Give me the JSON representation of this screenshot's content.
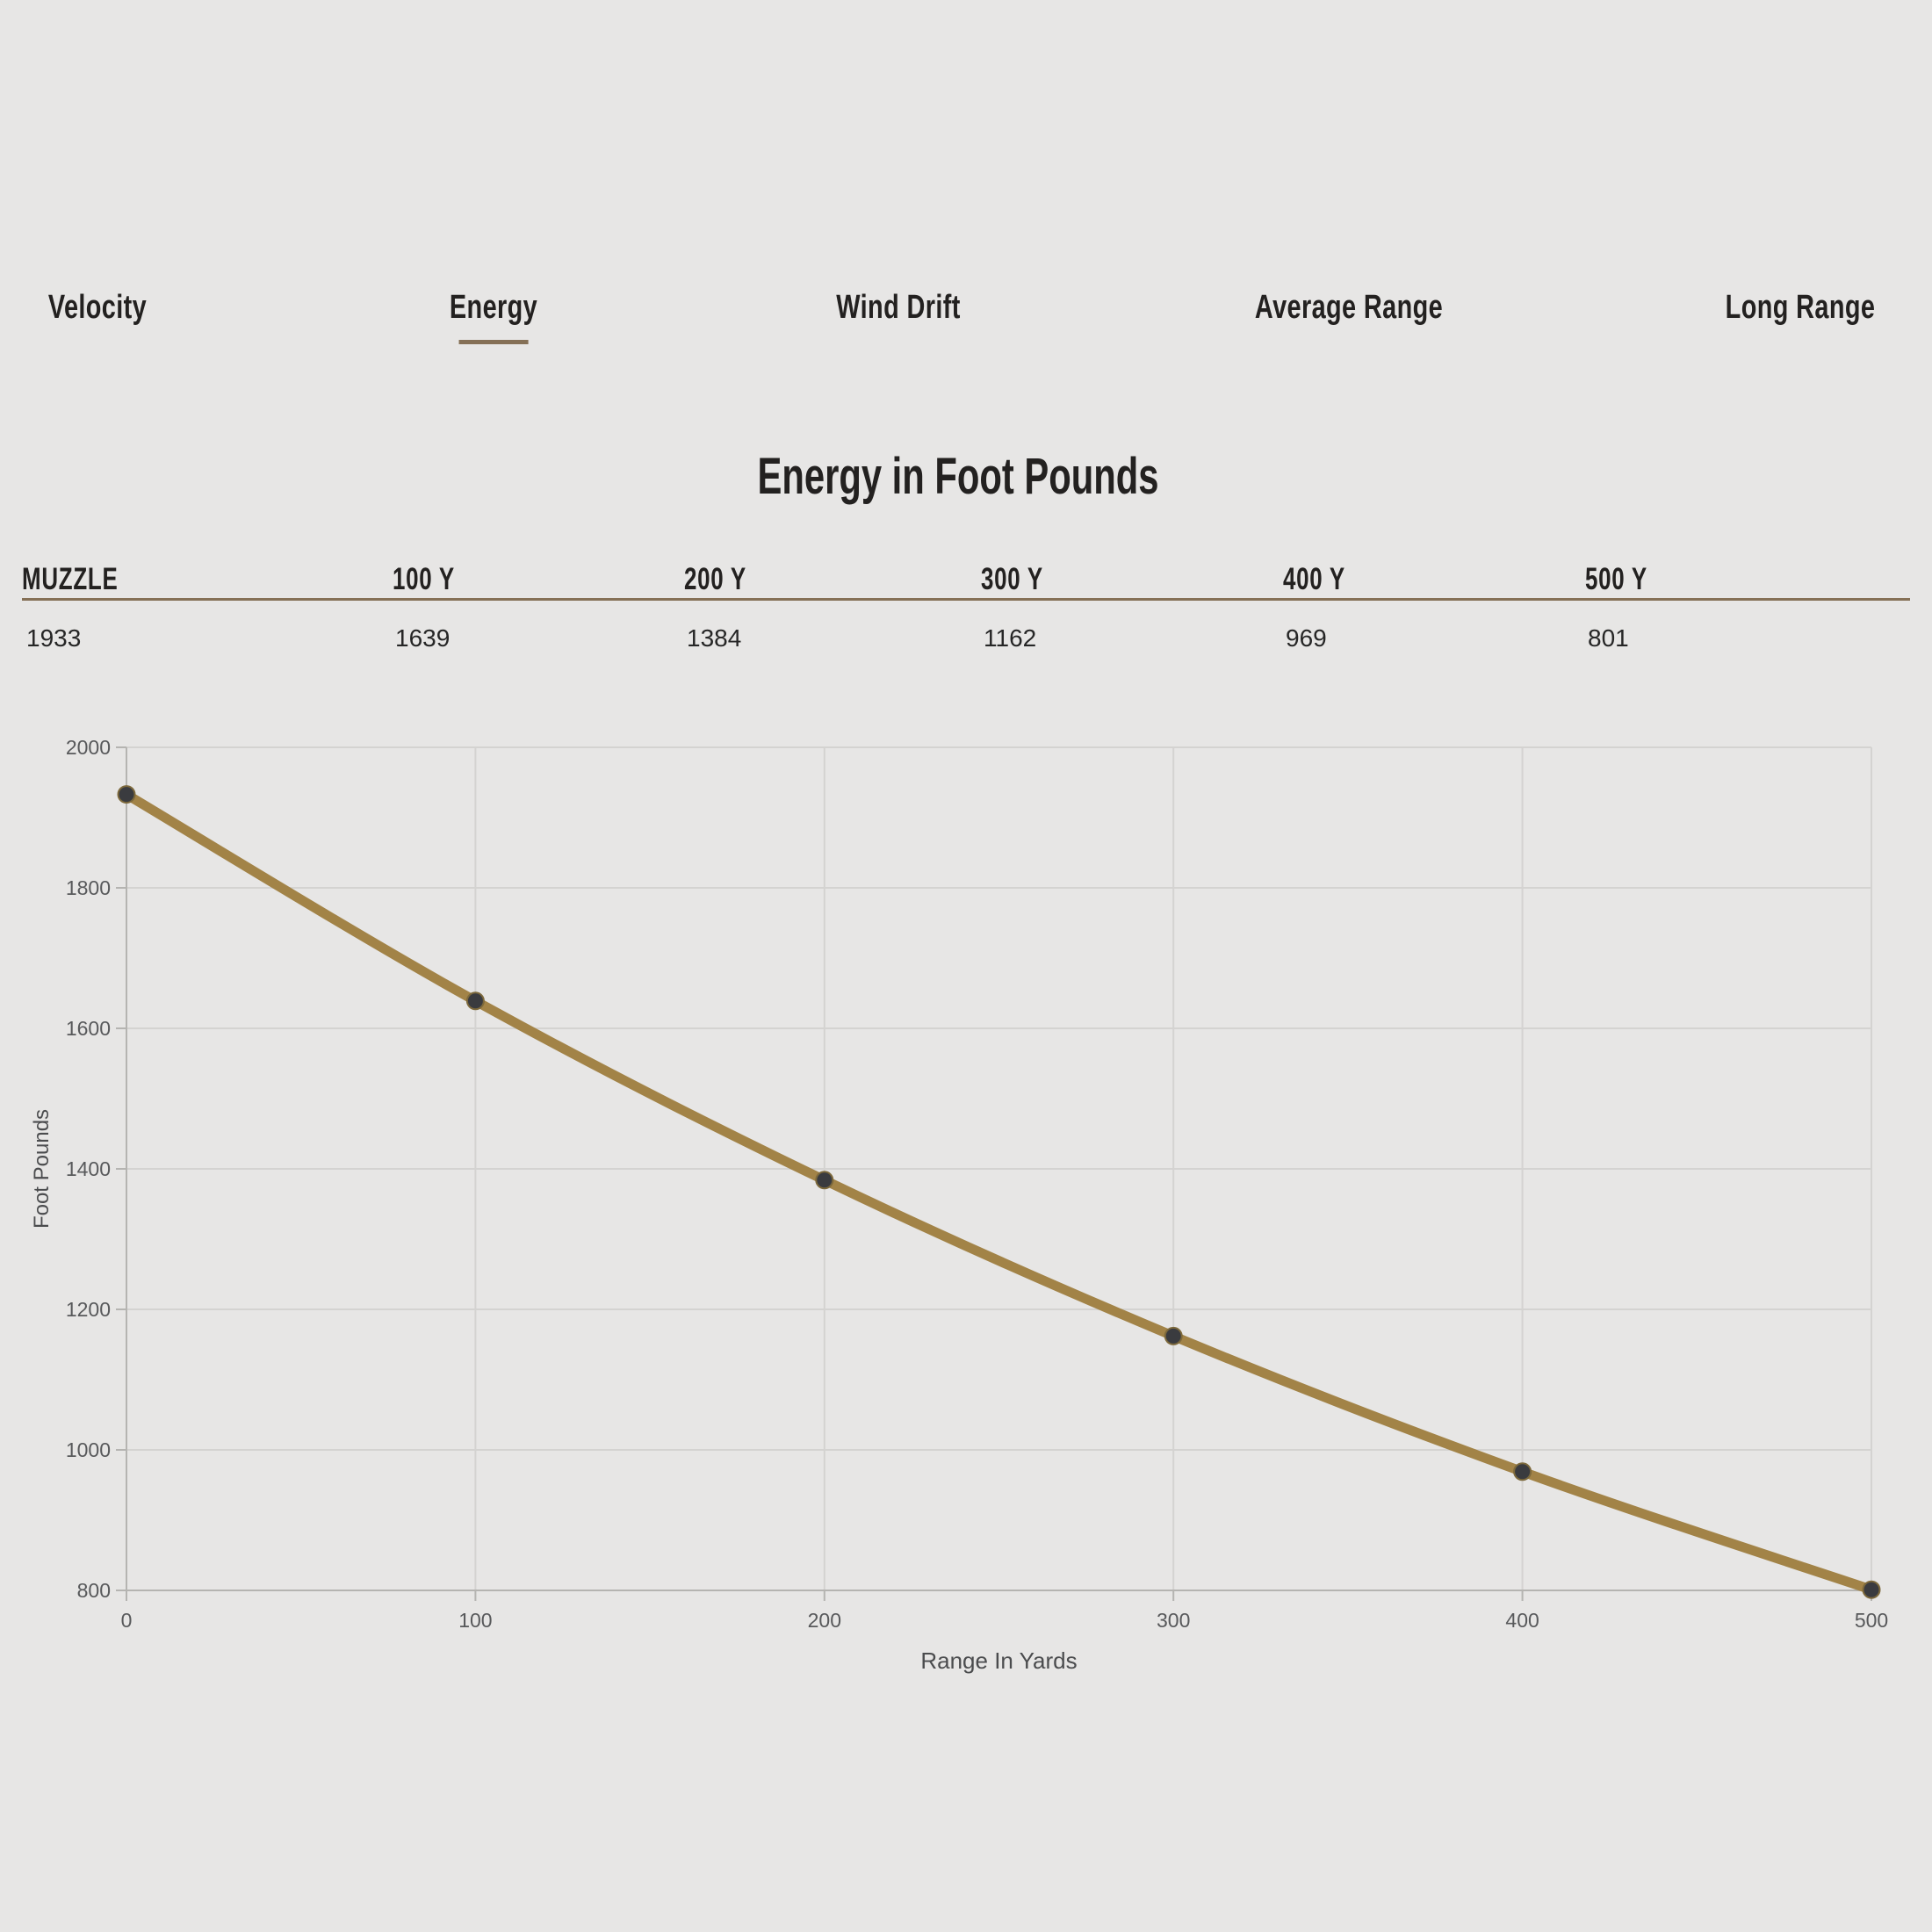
{
  "tabs": [
    {
      "label": "Velocity",
      "active": false
    },
    {
      "label": "Energy",
      "active": true
    },
    {
      "label": "Wind Drift",
      "active": false
    },
    {
      "label": "Average Range",
      "active": false
    },
    {
      "label": "Long Range",
      "active": false
    }
  ],
  "title": "Energy in Foot Pounds",
  "table": {
    "headers": [
      "MUZZLE",
      "100 Y",
      "200 Y",
      "300 Y",
      "400 Y",
      "500 Y"
    ],
    "values": [
      "1933",
      "1639",
      "1384",
      "1162",
      "969",
      "801"
    ]
  },
  "chart_data": {
    "type": "line",
    "x": [
      0,
      100,
      200,
      300,
      400,
      500
    ],
    "series": [
      {
        "name": "Energy",
        "values": [
          1933,
          1639,
          1384,
          1162,
          969,
          801
        ]
      }
    ],
    "title": "Energy in Foot Pounds",
    "xlabel": "Range In Yards",
    "ylabel": "Foot Pounds",
    "xlim": [
      0,
      500
    ],
    "ylim": [
      800,
      2000
    ],
    "x_ticks": [
      0,
      100,
      200,
      300,
      400,
      500
    ],
    "y_tick_step": 200,
    "grid": true,
    "legend": false,
    "line_color": "#a28347",
    "point_color": "#3a3b3f",
    "point_edge_color": "#7d693c"
  },
  "colors": {
    "background": "#e7e6e5",
    "accent_rule": "#857056",
    "text_dark": "#232120",
    "gridline": "#d4d3d1",
    "axis": "#b5b4b1",
    "tick_label": "#58595b",
    "axis_title": "#4b4c4e"
  }
}
